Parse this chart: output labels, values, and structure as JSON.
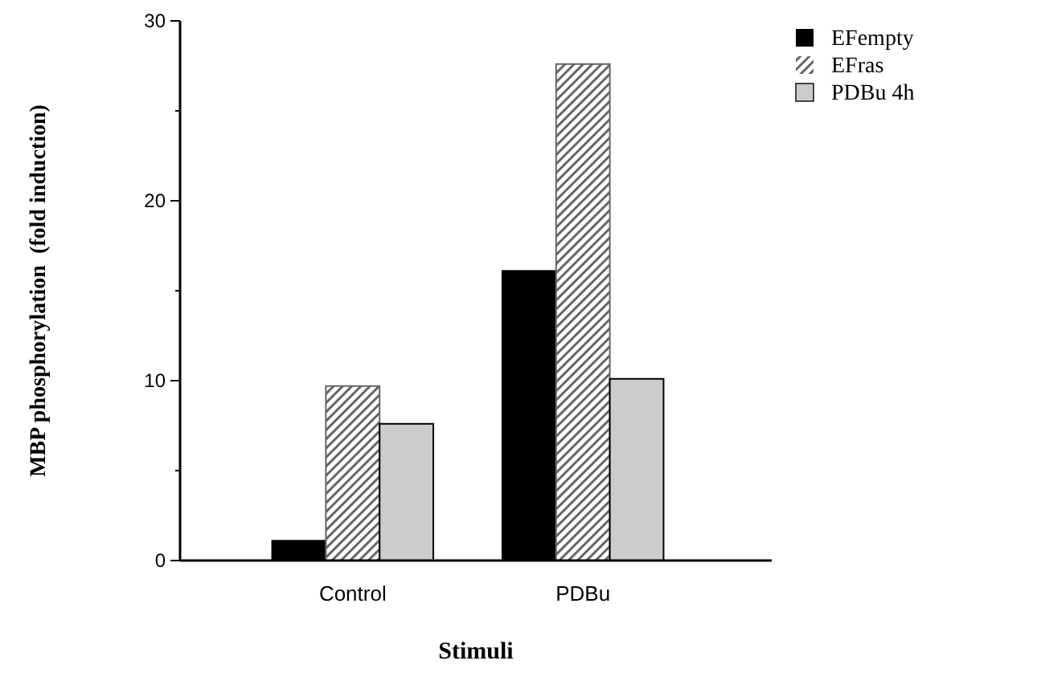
{
  "chart_data": {
    "type": "bar",
    "xlabel": "Stimuli",
    "ylabel": "MBP phosphorylation  (fold induction)",
    "categories": [
      "Control",
      "PDBu"
    ],
    "series": [
      {
        "name": "EFempty",
        "color": "#000000",
        "values": [
          1.1,
          16.1
        ]
      },
      {
        "name": "EFras",
        "color": "#666666",
        "values": [
          9.7,
          27.6
        ]
      },
      {
        "name": "PDBu 4h",
        "color": "#cccccc",
        "values": [
          7.6,
          10.1
        ]
      }
    ],
    "ylim": [
      0,
      30
    ],
    "yticks": [
      0,
      {
        "value": 5,
        "label": null
      },
      10,
      {
        "value": 15,
        "label": null
      },
      20,
      {
        "value": 25,
        "label": null
      },
      30
    ],
    "grid": false,
    "legend": "top right"
  }
}
